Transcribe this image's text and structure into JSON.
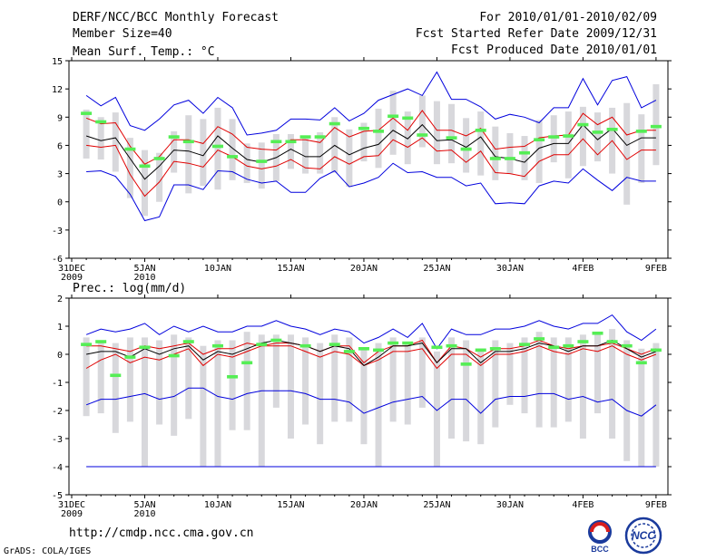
{
  "header": {
    "title": "DERF/NCC/BCC Monthly Forecast",
    "member_size": "Member Size=40",
    "period": "For 2010/01/01-2010/02/09",
    "fcst_started": "Fcst Started Refer Date 2009/12/31",
    "fcst_produced": "Fcst Produced Date 2010/01/01"
  },
  "footer": {
    "url": "http://cmdp.ncc.cma.gov.cn",
    "credit": "GrADS: COLA/IGES",
    "logo_bcc": "BCC",
    "logo_ncc": "NCC"
  },
  "colors": {
    "ensemble_mean": "#000000",
    "ensemble_spread": "#e00000",
    "ensemble_envelope": "#0000dd",
    "range_bar": "#d8d8dc",
    "observed": "#55ee55"
  },
  "chart_data": [
    {
      "type": "line",
      "title": "Mean Surf. Temp.: °C",
      "xlabel": "",
      "ylabel": "",
      "ylim": [
        -6,
        15
      ],
      "yticks": [
        -6,
        -3,
        0,
        3,
        6,
        9,
        12,
        15
      ],
      "x_ticks": [
        {
          "day": 0,
          "label": "31DEC",
          "sub": "2009"
        },
        {
          "day": 5,
          "label": "5JAN",
          "sub": "2010"
        },
        {
          "day": 10,
          "label": "10JAN",
          "sub": ""
        },
        {
          "day": 15,
          "label": "15JAN",
          "sub": ""
        },
        {
          "day": 20,
          "label": "20JAN",
          "sub": ""
        },
        {
          "day": 25,
          "label": "25JAN",
          "sub": ""
        },
        {
          "day": 30,
          "label": "30JAN",
          "sub": ""
        },
        {
          "day": 35,
          "label": "4FEB",
          "sub": ""
        },
        {
          "day": 40,
          "label": "9FEB",
          "sub": ""
        }
      ],
      "x_days": [
        1,
        2,
        3,
        4,
        5,
        6,
        7,
        8,
        9,
        10,
        11,
        12,
        13,
        14,
        15,
        16,
        17,
        18,
        19,
        20,
        21,
        22,
        23,
        24,
        25,
        26,
        27,
        28,
        29,
        30,
        31,
        32,
        33,
        34,
        35,
        36,
        37,
        38,
        39,
        40
      ],
      "series": [
        {
          "name": "max",
          "values": [
            11.3,
            10.2,
            11.1,
            8.1,
            7.6,
            8.8,
            10.3,
            10.8,
            9.4,
            11.1,
            10.0,
            7.1,
            7.3,
            7.6,
            8.8,
            8.8,
            8.7,
            10.0,
            8.6,
            9.4,
            10.8,
            11.4,
            12.0,
            11.3,
            13.8,
            10.9,
            10.9,
            10.1,
            8.8,
            9.3,
            9.0,
            8.4,
            10.0,
            10.0,
            13.1,
            10.3,
            12.9,
            13.3,
            10.0,
            10.8
          ]
        },
        {
          "name": "upper",
          "values": [
            8.9,
            8.3,
            8.4,
            5.9,
            4.0,
            4.8,
            6.6,
            6.6,
            6.2,
            8.0,
            7.2,
            5.8,
            5.6,
            5.5,
            6.6,
            6.6,
            6.3,
            7.9,
            6.9,
            7.5,
            7.6,
            8.9,
            7.6,
            9.7,
            7.6,
            7.6,
            7.0,
            7.8,
            5.6,
            5.8,
            5.9,
            6.8,
            7.0,
            7.1,
            9.4,
            8.2,
            9.0,
            7.1,
            7.6,
            7.6
          ]
        },
        {
          "name": "mean",
          "values": [
            7.0,
            6.5,
            6.8,
            4.6,
            2.4,
            3.8,
            5.5,
            5.4,
            4.9,
            7.0,
            5.7,
            4.5,
            4.2,
            4.7,
            5.6,
            4.8,
            4.8,
            6.0,
            5.0,
            5.7,
            6.1,
            7.6,
            6.7,
            8.2,
            6.5,
            6.6,
            5.8,
            6.9,
            4.8,
            4.6,
            4.2,
            5.7,
            6.2,
            6.2,
            8.2,
            6.6,
            7.8,
            6.0,
            6.8,
            6.8
          ]
        },
        {
          "name": "lower",
          "values": [
            6.0,
            5.8,
            6.0,
            2.9,
            0.6,
            2.1,
            4.3,
            4.1,
            3.7,
            5.5,
            4.8,
            3.8,
            3.5,
            3.8,
            4.5,
            3.6,
            3.5,
            4.8,
            4.0,
            4.8,
            4.9,
            6.6,
            5.8,
            6.8,
            5.4,
            5.5,
            4.2,
            5.4,
            3.1,
            3.0,
            2.7,
            4.3,
            5.0,
            5.0,
            6.7,
            5.0,
            6.5,
            4.5,
            5.5,
            5.5
          ]
        },
        {
          "name": "min",
          "values": [
            3.2,
            3.3,
            2.7,
            0.8,
            -2.0,
            -1.6,
            1.8,
            1.8,
            1.3,
            3.3,
            3.2,
            2.4,
            2.0,
            2.2,
            1.0,
            1.0,
            2.5,
            3.3,
            1.6,
            2.0,
            2.6,
            4.1,
            3.1,
            3.2,
            2.6,
            2.6,
            1.7,
            2.0,
            -0.2,
            -0.1,
            -0.2,
            1.7,
            2.2,
            2.0,
            3.5,
            2.3,
            1.2,
            2.6,
            2.2,
            2.2
          ]
        },
        {
          "name": "box_high",
          "values": [
            9.8,
            9.0,
            9.5,
            6.8,
            5.5,
            5.2,
            7.5,
            9.2,
            8.8,
            10.0,
            8.8,
            6.2,
            6.3,
            7.2,
            7.2,
            7.0,
            7.4,
            9.0,
            7.7,
            8.4,
            9.9,
            11.8,
            9.6,
            11.3,
            10.7,
            10.4,
            8.9,
            9.6,
            8.0,
            7.3,
            7.0,
            8.7,
            9.2,
            9.6,
            10.1,
            9.5,
            10.0,
            10.5,
            9.3,
            12.5
          ]
        },
        {
          "name": "box_low",
          "values": [
            4.6,
            4.5,
            3.2,
            0.4,
            -1.5,
            0.0,
            3.1,
            0.9,
            1.7,
            1.3,
            2.3,
            2.0,
            1.4,
            2.2,
            3.5,
            3.0,
            3.0,
            3.1,
            1.6,
            4.3,
            3.6,
            5.0,
            4.0,
            5.8,
            4.0,
            4.1,
            3.1,
            2.8,
            2.3,
            3.0,
            2.3,
            2.0,
            4.2,
            2.5,
            3.8,
            4.3,
            3.0,
            -0.3,
            2.0,
            3.9
          ]
        },
        {
          "name": "observed",
          "values": [
            9.4,
            8.5,
            null,
            5.6,
            3.8,
            4.6,
            6.9,
            6.4,
            null,
            5.9,
            4.8,
            null,
            4.3,
            6.4,
            6.4,
            6.9,
            6.9,
            8.3,
            null,
            7.8,
            7.5,
            9.1,
            8.9,
            7.1,
            null,
            6.8,
            5.6,
            7.6,
            4.6,
            4.6,
            5.2,
            6.6,
            6.9,
            7.0,
            8.2,
            7.4,
            7.7,
            null,
            7.5,
            8.0
          ]
        }
      ]
    },
    {
      "type": "line",
      "title": "Prec.: log(mm/d)",
      "xlabel": "",
      "ylabel": "",
      "ylim": [
        -5,
        2
      ],
      "yticks": [
        -5,
        -4,
        -3,
        -2,
        -1,
        0,
        1,
        2
      ],
      "x_ticks": [
        {
          "day": 0,
          "label": "31DEC",
          "sub": "2009"
        },
        {
          "day": 5,
          "label": "5JAN",
          "sub": "2010"
        },
        {
          "day": 10,
          "label": "10JAN",
          "sub": ""
        },
        {
          "day": 15,
          "label": "15JAN",
          "sub": ""
        },
        {
          "day": 20,
          "label": "20JAN",
          "sub": ""
        },
        {
          "day": 25,
          "label": "25JAN",
          "sub": ""
        },
        {
          "day": 30,
          "label": "30JAN",
          "sub": ""
        },
        {
          "day": 35,
          "label": "4FEB",
          "sub": ""
        },
        {
          "day": 40,
          "label": "9FEB",
          "sub": ""
        }
      ],
      "x_days": [
        1,
        2,
        3,
        4,
        5,
        6,
        7,
        8,
        9,
        10,
        11,
        12,
        13,
        14,
        15,
        16,
        17,
        18,
        19,
        20,
        21,
        22,
        23,
        24,
        25,
        26,
        27,
        28,
        29,
        30,
        31,
        32,
        33,
        34,
        35,
        36,
        37,
        38,
        39,
        40
      ],
      "series": [
        {
          "name": "max",
          "values": [
            0.7,
            0.9,
            0.8,
            0.9,
            1.1,
            0.7,
            1.0,
            0.8,
            1.0,
            0.8,
            0.8,
            1.0,
            1.0,
            1.2,
            1.0,
            0.9,
            0.7,
            0.9,
            0.8,
            0.4,
            0.6,
            0.9,
            0.6,
            1.1,
            0.2,
            0.9,
            0.7,
            0.7,
            0.9,
            0.9,
            1.0,
            1.2,
            1.0,
            0.9,
            1.1,
            1.1,
            1.4,
            0.8,
            0.5,
            0.9
          ]
        },
        {
          "name": "upper",
          "values": [
            0.3,
            0.3,
            0.2,
            0.1,
            0.3,
            0.2,
            0.3,
            0.4,
            0.0,
            0.2,
            0.2,
            0.4,
            0.3,
            0.4,
            0.4,
            0.3,
            0.1,
            0.3,
            0.3,
            -0.3,
            0.1,
            0.3,
            0.3,
            0.5,
            -0.3,
            0.3,
            0.2,
            -0.1,
            0.2,
            0.2,
            0.3,
            0.5,
            0.3,
            0.2,
            0.3,
            0.3,
            0.4,
            0.2,
            0.0,
            0.2
          ]
        },
        {
          "name": "mean",
          "values": [
            0.0,
            0.1,
            0.1,
            -0.1,
            0.2,
            0.0,
            0.2,
            0.3,
            -0.2,
            0.1,
            0.0,
            0.2,
            0.4,
            0.5,
            0.4,
            0.3,
            0.1,
            0.3,
            0.2,
            -0.4,
            -0.1,
            0.3,
            0.3,
            0.4,
            -0.3,
            0.2,
            0.2,
            -0.3,
            0.1,
            0.1,
            0.2,
            0.4,
            0.3,
            0.1,
            0.3,
            0.3,
            0.5,
            0.2,
            -0.1,
            0.1
          ]
        },
        {
          "name": "lower",
          "values": [
            -0.5,
            -0.2,
            0.0,
            -0.3,
            -0.1,
            -0.2,
            0.0,
            0.2,
            -0.4,
            0.0,
            -0.1,
            0.1,
            0.3,
            0.3,
            0.3,
            0.1,
            -0.1,
            0.1,
            0.0,
            -0.4,
            -0.2,
            0.1,
            0.1,
            0.2,
            -0.5,
            0.0,
            0.0,
            -0.4,
            0.0,
            0.0,
            0.1,
            0.3,
            0.1,
            0.0,
            0.2,
            0.1,
            0.3,
            0.0,
            -0.2,
            0.0
          ]
        },
        {
          "name": "min",
          "values": [
            -1.8,
            -1.6,
            -1.6,
            -1.5,
            -1.4,
            -1.6,
            -1.5,
            -1.2,
            -1.2,
            -1.5,
            -1.6,
            -1.4,
            -1.3,
            -1.3,
            -1.3,
            -1.4,
            -1.6,
            -1.6,
            -1.7,
            -2.1,
            -1.9,
            -1.7,
            -1.6,
            -1.5,
            -2.0,
            -1.6,
            -1.6,
            -2.1,
            -1.6,
            -1.5,
            -1.5,
            -1.4,
            -1.4,
            -1.6,
            -1.5,
            -1.7,
            -1.6,
            -2.0,
            -2.2,
            -1.8
          ]
        },
        {
          "name": "floor",
          "values": [
            -4.0,
            -4.0,
            -4.0,
            -4.0,
            -4.0,
            -4.0,
            -4.0,
            -4.0,
            -4.0,
            -4.0,
            -4.0,
            -4.0,
            -4.0,
            -4.0,
            -4.0,
            -4.0,
            -4.0,
            -4.0,
            -4.0,
            -4.0,
            -4.0,
            -4.0,
            -4.0,
            -4.0,
            -4.0,
            -4.0,
            -4.0,
            -4.0,
            -4.0,
            -4.0,
            -4.0,
            -4.0,
            -4.0,
            -4.0,
            -4.0,
            -4.0,
            -4.0,
            -4.0,
            -4.0,
            -4.0
          ]
        },
        {
          "name": "box_high",
          "values": [
            0.6,
            0.5,
            0.4,
            0.6,
            0.6,
            0.5,
            0.7,
            0.6,
            0.3,
            0.5,
            0.5,
            0.8,
            0.7,
            0.7,
            0.7,
            0.6,
            0.4,
            0.7,
            0.6,
            0.2,
            0.4,
            0.6,
            0.4,
            0.6,
            0.1,
            0.6,
            0.5,
            0.2,
            0.5,
            0.4,
            0.6,
            0.8,
            0.6,
            0.6,
            0.7,
            0.7,
            0.9,
            0.5,
            0.2,
            0.4
          ]
        },
        {
          "name": "box_low",
          "values": [
            -2.2,
            -2.1,
            -2.8,
            -2.4,
            -4.0,
            -2.5,
            -2.9,
            -2.3,
            -4.0,
            -4.0,
            -2.7,
            -2.7,
            -4.0,
            -1.9,
            -3.0,
            -2.5,
            -3.2,
            -2.4,
            -2.4,
            -3.2,
            -4.0,
            -2.4,
            -2.5,
            -1.9,
            -4.0,
            -3.0,
            -3.1,
            -3.2,
            -2.6,
            -1.8,
            -2.1,
            -2.6,
            -2.6,
            -2.4,
            -3.0,
            -2.1,
            -3.0,
            -3.8,
            -4.0,
            -4.0
          ]
        },
        {
          "name": "observed",
          "values": [
            0.35,
            0.45,
            -0.75,
            -0.1,
            0.25,
            null,
            -0.05,
            0.45,
            null,
            0.3,
            -0.8,
            -0.3,
            0.35,
            0.5,
            null,
            0.3,
            null,
            0.35,
            0.1,
            0.2,
            0.15,
            0.4,
            0.4,
            null,
            0.25,
            0.3,
            -0.35,
            0.15,
            0.2,
            null,
            0.35,
            0.55,
            0.25,
            0.3,
            0.45,
            0.75,
            0.45,
            0.3,
            -0.3,
            0.15
          ]
        }
      ]
    }
  ]
}
